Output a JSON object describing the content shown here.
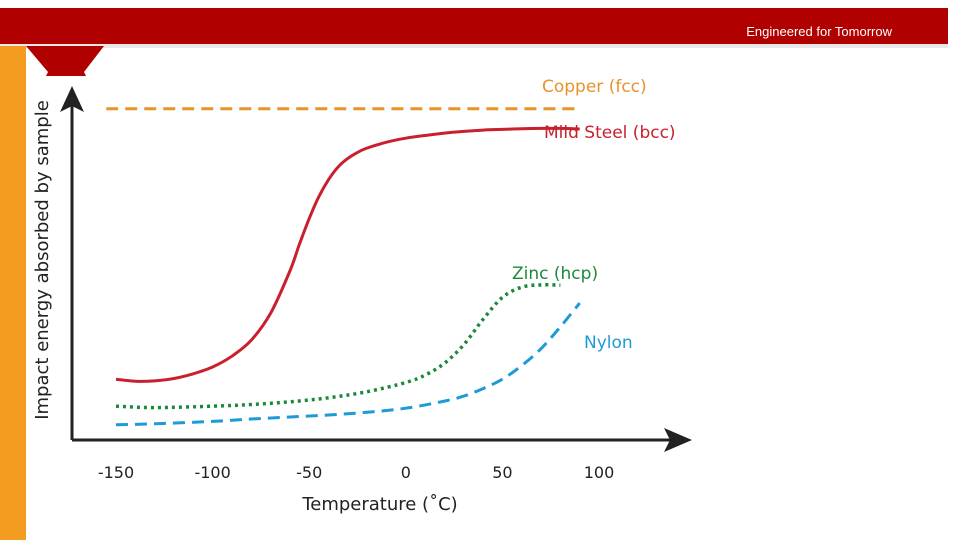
{
  "header": {
    "tagline": "Engineered for Tomorrow",
    "banner_color": "#b00000",
    "accent_color": "#f39c1f"
  },
  "chart_data": {
    "type": "line",
    "title": "",
    "xlabel": "Temperature (˚C)",
    "ylabel": "Impact energy absorbed by sample",
    "xlim": [
      -170,
      140
    ],
    "ylim": [
      0,
      100
    ],
    "x_ticks": [
      -150,
      -100,
      -50,
      0,
      50,
      100
    ],
    "x_tick_labels": [
      "-150",
      "-100",
      "-50",
      "0",
      "50",
      "100"
    ],
    "grid": false,
    "legend": "inline labels",
    "series": [
      {
        "name": "Copper (fcc)",
        "color": "#e8932a",
        "style": "dashed",
        "x": [
          -155,
          90
        ],
        "y": [
          98,
          98
        ]
      },
      {
        "name": "Mild Steel (bcc)",
        "color": "#c8202e",
        "style": "solid",
        "x": [
          -150,
          -140,
          -130,
          -120,
          -110,
          -100,
          -90,
          -80,
          -70,
          -60,
          -55,
          -50,
          -45,
          -40,
          -35,
          -30,
          -25,
          -20,
          -10,
          0,
          10,
          20,
          30,
          40,
          50,
          60,
          70,
          80,
          90
        ],
        "y": [
          18,
          17.4,
          17.5,
          18.2,
          19.6,
          21.6,
          24.8,
          29.5,
          37.5,
          50,
          58,
          65.5,
          72,
          77,
          80.8,
          83.3,
          85.1,
          86.4,
          88.1,
          89.3,
          90.1,
          90.8,
          91.3,
          91.7,
          91.9,
          92.1,
          92.2,
          92.2,
          92
        ]
      },
      {
        "name": "Zinc (hcp)",
        "color": "#1a8a3a",
        "style": "dotted",
        "x": [
          -150,
          -130,
          -100,
          -80,
          -60,
          -40,
          -20,
          0,
          10,
          20,
          30,
          40,
          50,
          60,
          70,
          80
        ],
        "y": [
          10,
          9.6,
          10,
          10.5,
          11.3,
          12.5,
          14.3,
          17,
          19.2,
          22.7,
          28.2,
          35.7,
          42.2,
          45.2,
          45.9,
          45.8
        ]
      },
      {
        "name": "Nylon",
        "color": "#1e9bd7",
        "style": "dashed",
        "x": [
          -150,
          -130,
          -100,
          -80,
          -60,
          -40,
          -20,
          0,
          20,
          30,
          40,
          50,
          60,
          70,
          80,
          90
        ],
        "y": [
          4.5,
          4.8,
          5.5,
          6.2,
          6.8,
          7.4,
          8.2,
          9.4,
          11.5,
          13,
          15.2,
          18,
          22,
          27,
          33.5,
          40.5
        ]
      }
    ]
  }
}
